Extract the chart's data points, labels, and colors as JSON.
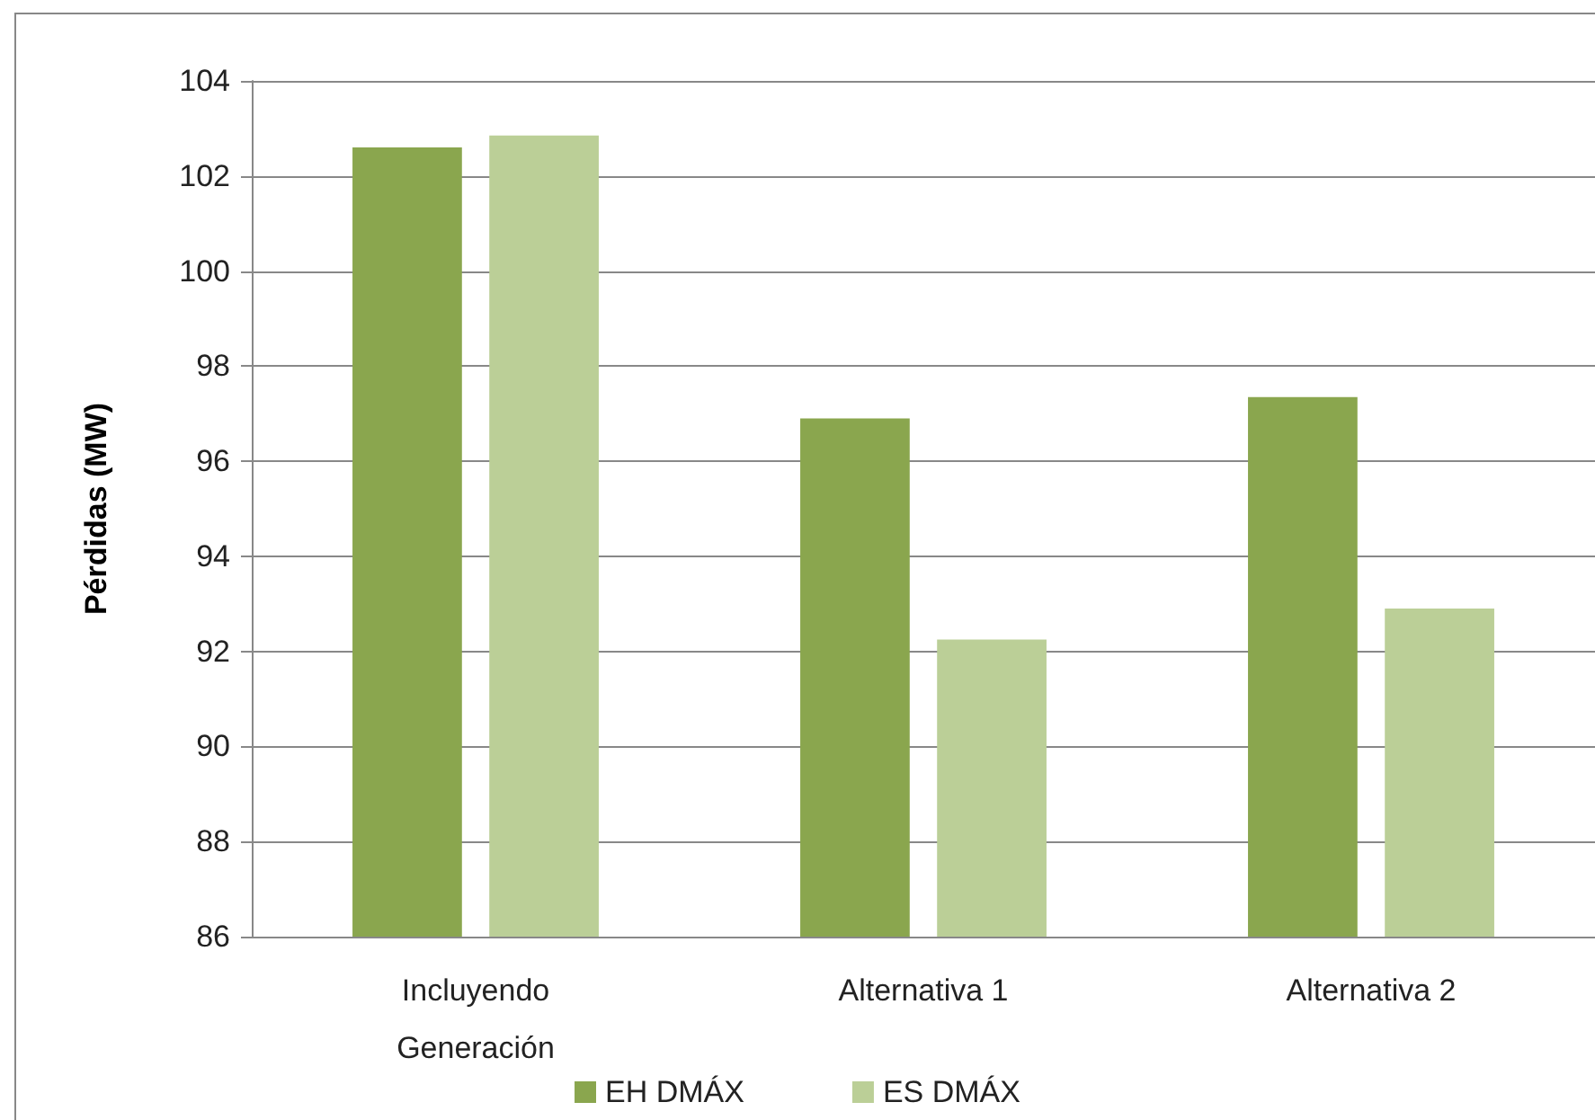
{
  "chart_data": {
    "type": "bar",
    "ylabel": "Pérdidas (MW)",
    "categories": [
      "Incluyendo\nGeneración",
      "Alternativa 1",
      "Alternativa 2"
    ],
    "series": [
      {
        "name": "EH DMÁX",
        "color": "#8aa64e",
        "values": [
          102.6,
          96.9,
          97.35
        ]
      },
      {
        "name": "ES DMÁX",
        "color": "#bbcf97",
        "values": [
          102.85,
          92.25,
          92.9
        ]
      }
    ],
    "ylim": [
      86,
      104
    ],
    "yticks": [
      86,
      88,
      90,
      92,
      94,
      96,
      98,
      100,
      102,
      104
    ],
    "grid": "y",
    "legend": "bottom"
  }
}
